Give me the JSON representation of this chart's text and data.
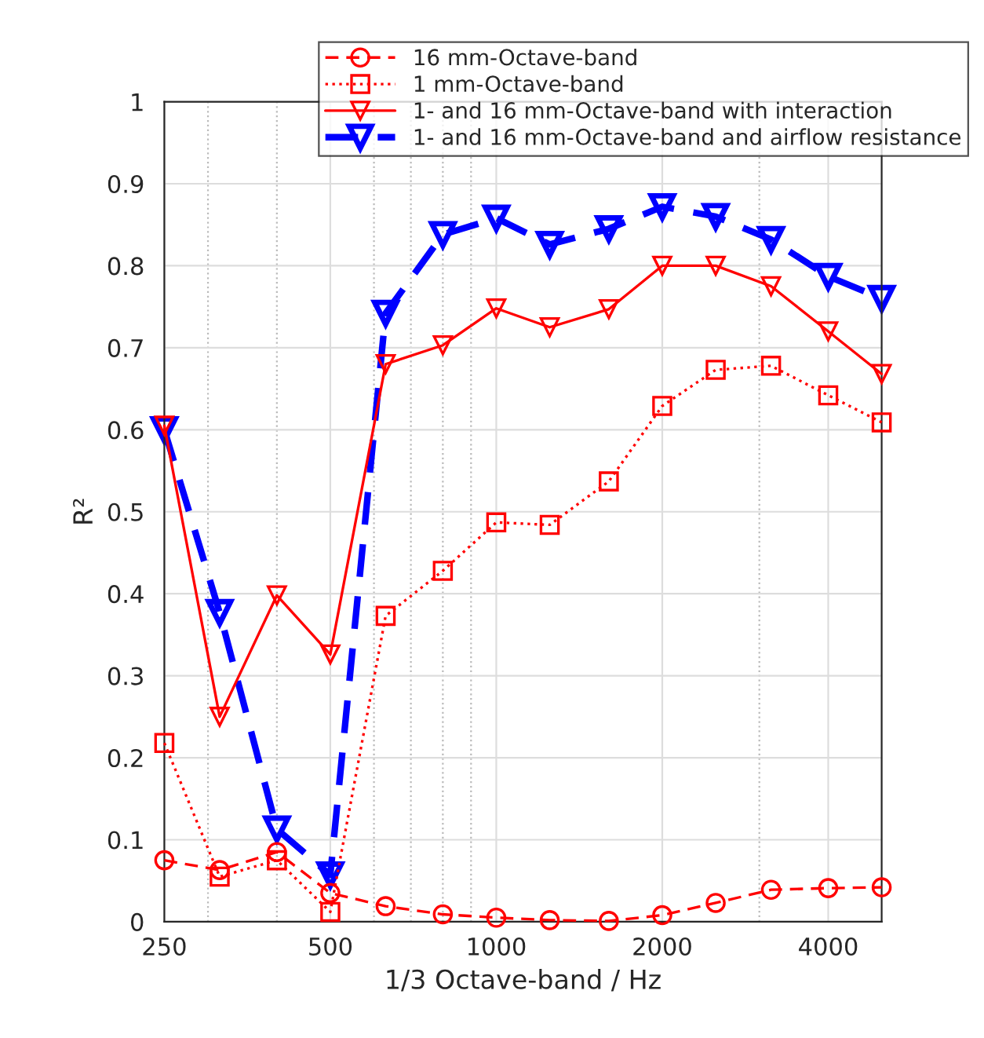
{
  "chart_data": {
    "type": "line",
    "xlabel": "1/3 Octave-band / Hz",
    "ylabel": "R²",
    "x": [
      250,
      315,
      400,
      500,
      630,
      800,
      1000,
      1250,
      1600,
      2000,
      2500,
      3150,
      4000,
      5000
    ],
    "xlim": [
      250,
      5000
    ],
    "xticks": [
      250,
      {
        "value": 300,
        "label": null
      },
      {
        "value": 400,
        "label": null
      },
      500,
      {
        "value": 600,
        "label": null
      },
      {
        "value": 700,
        "label": null
      },
      {
        "value": 800,
        "label": null
      },
      {
        "value": 900,
        "label": null
      },
      1000,
      2000,
      {
        "value": 3000,
        "label": null
      },
      4000
    ],
    "ylim": [
      0,
      1
    ],
    "yticks": [
      0,
      0.1,
      0.2,
      0.3,
      0.4,
      0.5,
      0.6,
      0.7,
      0.8,
      0.9,
      1
    ],
    "log": "x",
    "grid": true,
    "legend": "top right",
    "series": [
      {
        "name": "16 mm-Octave-band",
        "color": "#ff0000",
        "marker": "circle",
        "line_style": "dashed",
        "values": [
          0.075,
          0.063,
          0.085,
          0.035,
          0.019,
          0.009,
          0.005,
          0.002,
          0.001,
          0.008,
          0.023,
          0.039,
          0.041,
          0.042
        ]
      },
      {
        "name": "1 mm-Octave-band",
        "color": "#ff0000",
        "marker": "square",
        "line_style": "dotted",
        "values": [
          0.218,
          0.055,
          0.075,
          0.012,
          0.373,
          0.428,
          0.487,
          0.484,
          0.537,
          0.629,
          0.673,
          0.678,
          0.642,
          0.609
        ]
      },
      {
        "name": "1- and 16 mm-Octave-band with interaction",
        "color": "#ff0000",
        "marker": "triangle",
        "line_style": "solid",
        "values": [
          0.605,
          0.25,
          0.398,
          0.326,
          0.68,
          0.703,
          0.748,
          0.725,
          0.747,
          0.8,
          0.8,
          0.775,
          0.72,
          0.668
        ]
      },
      {
        "name": "1- and 16 mm-Octave-band and airflow resistance",
        "color": "#0000ff",
        "marker": "triangle",
        "line_style": "dashed",
        "values": [
          0.6,
          0.377,
          0.113,
          0.057,
          0.742,
          0.838,
          0.858,
          0.826,
          0.845,
          0.872,
          0.86,
          0.832,
          0.787,
          0.76
        ]
      }
    ]
  }
}
